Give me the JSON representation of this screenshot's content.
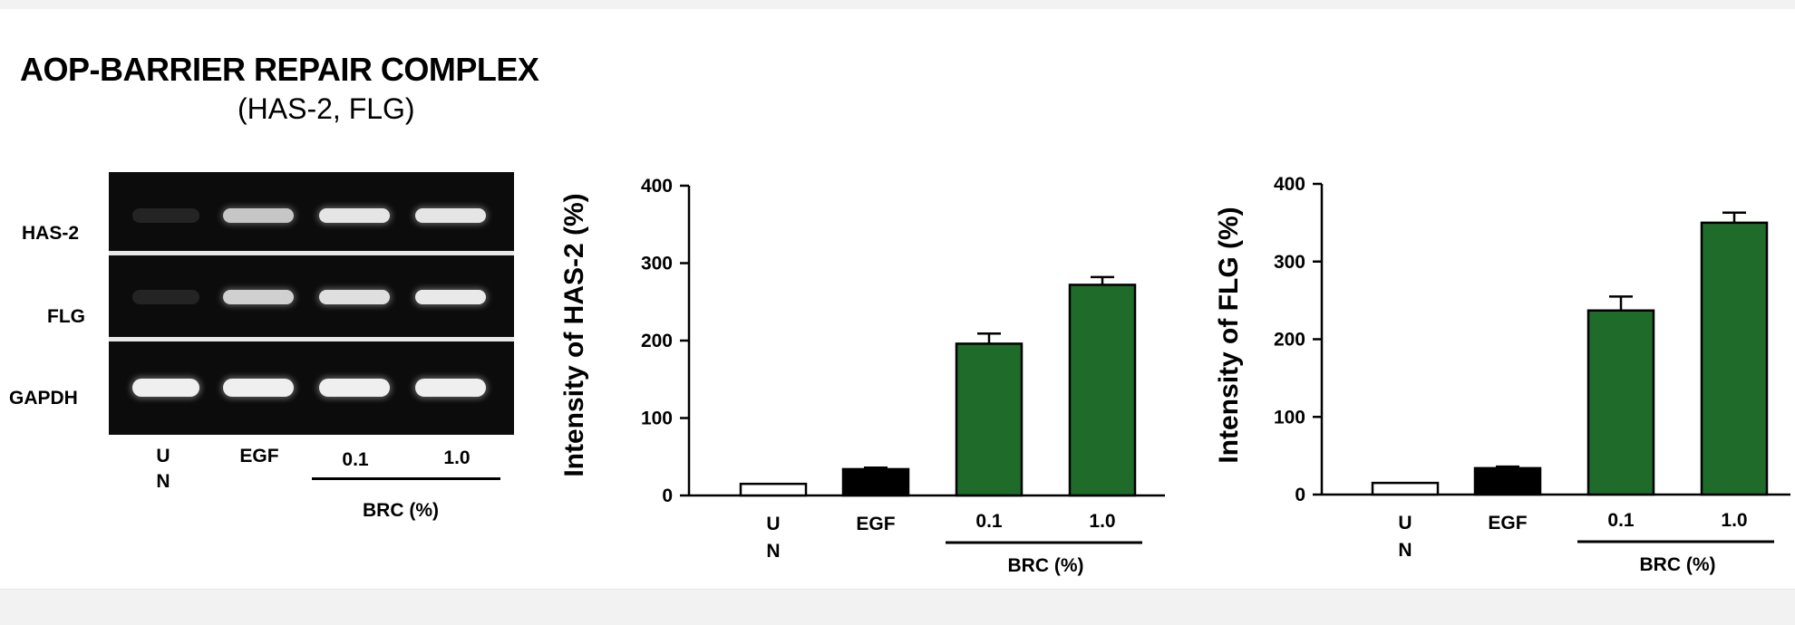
{
  "figure": {
    "title": "AOP-BARRIER REPAIR COMPLEX",
    "subtitle": "(HAS-2, FLG)"
  },
  "gel": {
    "row_labels": [
      "HAS-2",
      "FLG",
      "GAPDH"
    ],
    "lane_labels": [
      "U\nN",
      "EGF",
      "0.1",
      "1.0"
    ],
    "group_label": "BRC (%)",
    "band_intensity": {
      "HAS-2": [
        0.05,
        0.6,
        0.9,
        0.9
      ],
      "FLG": [
        0.05,
        0.7,
        0.85,
        0.95
      ],
      "GAPDH": [
        1.0,
        1.0,
        1.0,
        1.0
      ]
    }
  },
  "colors": {
    "un_bar": "#ffffff",
    "egf_bar": "#000000",
    "brc_bar": "#1e6b2a",
    "bar_stroke": "#000000"
  },
  "chart_data": [
    {
      "type": "bar",
      "categories": [
        "U\nN",
        "EGF",
        "0.1",
        "1.0"
      ],
      "values": [
        15,
        34,
        196,
        272
      ],
      "errors": [
        0,
        2,
        13,
        10
      ],
      "group_label": "BRC (%)",
      "group_categories": [
        "0.1",
        "1.0"
      ],
      "title": "",
      "xlabel": "",
      "ylabel": "Intensity of HAS-2 (%)",
      "ylim": [
        0,
        400
      ],
      "yticks": [
        0,
        100,
        200,
        300,
        400
      ],
      "grid": false,
      "legend": "none"
    },
    {
      "type": "bar",
      "categories": [
        "U\nN",
        "EGF",
        "0.1",
        "1.0"
      ],
      "values": [
        15,
        34,
        237,
        350
      ],
      "errors": [
        0,
        2,
        18,
        13
      ],
      "group_label": "BRC (%)",
      "group_categories": [
        "0.1",
        "1.0"
      ],
      "title": "",
      "xlabel": "",
      "ylabel": "Intensity of FLG (%)",
      "ylim": [
        0,
        400
      ],
      "yticks": [
        0,
        100,
        200,
        300,
        400
      ],
      "grid": false,
      "legend": "none"
    }
  ]
}
